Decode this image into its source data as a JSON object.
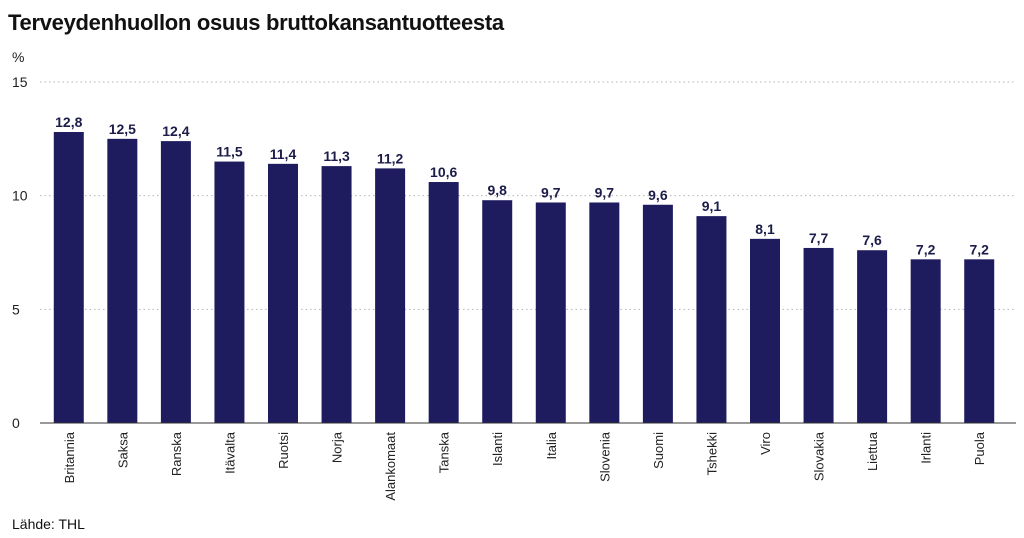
{
  "chart_data": {
    "type": "bar",
    "title": "Terveydenhuollon osuus bruttokansantuotteesta",
    "ylabel": "%",
    "ylim": [
      0,
      15
    ],
    "yticks": [
      0,
      5,
      10,
      15
    ],
    "grid": true,
    "legend": "none",
    "bar_color": "#1e1b5e",
    "categories": [
      "Britannia",
      "Saksa",
      "Ranska",
      "Itävalta",
      "Ruotsi",
      "Norja",
      "Alankomaat",
      "Tanska",
      "Islanti",
      "Italia",
      "Slovenia",
      "Suomi",
      "Tshekki",
      "Viro",
      "Slovakia",
      "Liettua",
      "Irlanti",
      "Puola"
    ],
    "values": [
      12.8,
      12.5,
      12.4,
      11.5,
      11.4,
      11.3,
      11.2,
      10.6,
      9.8,
      9.7,
      9.7,
      9.6,
      9.1,
      8.1,
      7.7,
      7.6,
      7.2,
      7.2
    ],
    "value_labels": [
      "12,8",
      "12,5",
      "12,4",
      "11,5",
      "11,4",
      "11,3",
      "11,2",
      "10,6",
      "9,8",
      "9,7",
      "9,7",
      "9,6",
      "9,1",
      "8,1",
      "7,7",
      "7,6",
      "7,2",
      "7,2"
    ]
  },
  "source": "Lähde: THL"
}
